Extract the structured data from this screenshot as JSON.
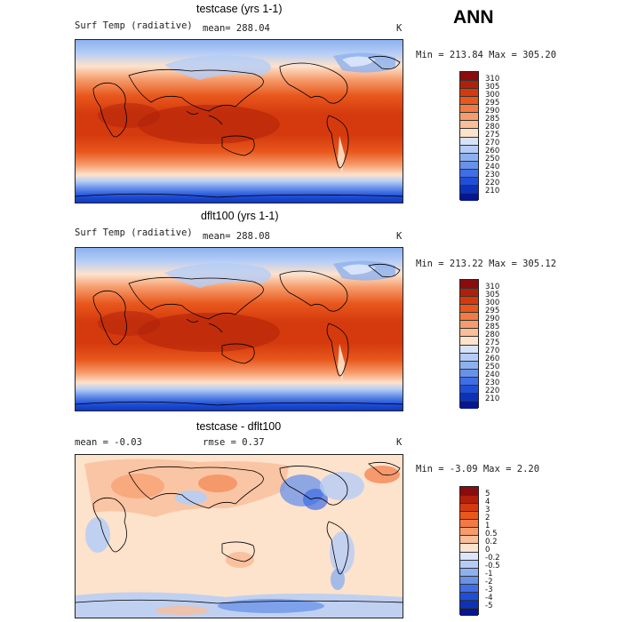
{
  "season": "ANN",
  "panels": [
    {
      "id": "p1",
      "title": "testcase (yrs 1-1)",
      "variable": "Surf Temp (radiative)",
      "stat1": "mean= 288.04",
      "stat2": "",
      "units": "K",
      "minmax": "Min = 213.84 Max = 305.20",
      "kind": "abs"
    },
    {
      "id": "p2",
      "title": "dflt100 (yrs 1-1)",
      "variable": "Surf Temp (radiative)",
      "stat1": "mean= 288.08",
      "stat2": "",
      "units": "K",
      "minmax": "Min = 213.22 Max = 305.12",
      "kind": "abs"
    },
    {
      "id": "p3",
      "title": "testcase - dflt100",
      "variable": "",
      "stat1": "mean =   -0.03",
      "stat2": "rmse =    0.37",
      "units": "K",
      "minmax": "Min =   -3.09 Max =    2.20",
      "kind": "diff"
    }
  ],
  "colorbars": {
    "abs": {
      "labels": [
        "310",
        "305",
        "300",
        "295",
        "290",
        "285",
        "280",
        "275",
        "270",
        "260",
        "250",
        "240",
        "230",
        "220",
        "210"
      ],
      "colors": [
        "#8a0c0c",
        "#b0200a",
        "#d53a0e",
        "#e8571c",
        "#f27a44",
        "#f69c6c",
        "#f9be9a",
        "#fde2cc",
        "#d6e3fb",
        "#b5cdf6",
        "#8db1ef",
        "#6892e9",
        "#3f6ee6",
        "#1f4fd8",
        "#0c32b8",
        "#06168e"
      ]
    },
    "diff": {
      "labels": [
        "5",
        "4",
        "3",
        "2",
        "1",
        "0.5",
        "0.2",
        "0",
        "-0.2",
        "-0.5",
        "-1",
        "-2",
        "-3",
        "-4",
        "-5"
      ],
      "colors": [
        "#8a0c0c",
        "#b0200a",
        "#d53a0e",
        "#e8571c",
        "#f27a44",
        "#f69c6c",
        "#f9be9a",
        "#fde2cc",
        "#dbe6fb",
        "#b5cdf6",
        "#8db1ef",
        "#6892e9",
        "#3f6ee6",
        "#1f4fd8",
        "#0c32b8",
        "#06168e"
      ]
    }
  }
}
